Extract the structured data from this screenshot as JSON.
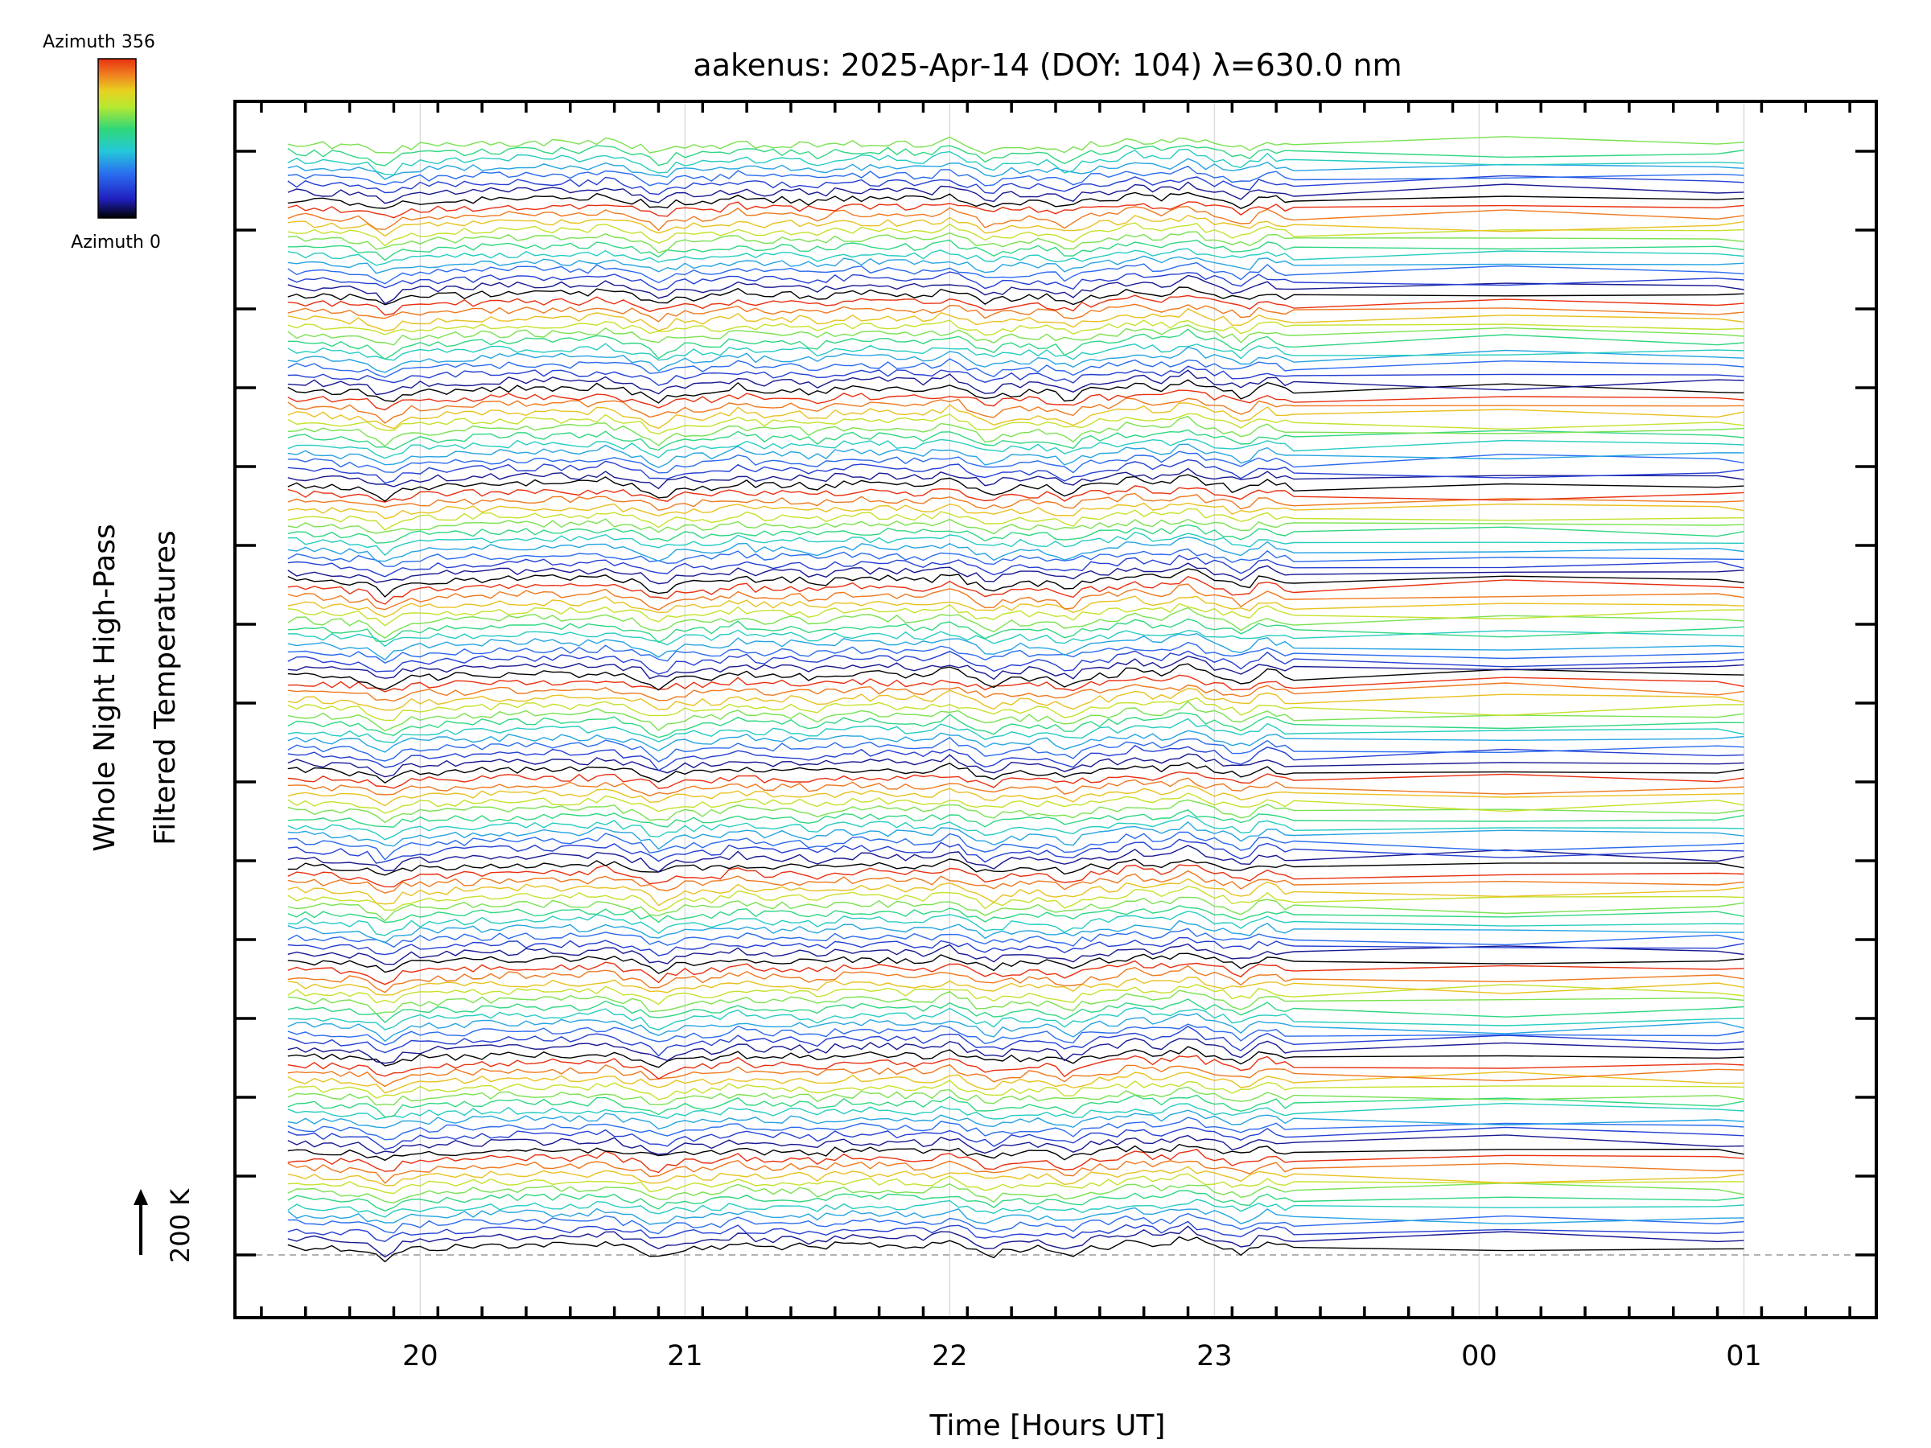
{
  "chart_data": {
    "type": "line",
    "title": "aakenus: 2025-Apr-14 (DOY: 104) λ=630.0 nm",
    "xlabel": "Time [Hours UT]",
    "ylabel_line1": "Whole Night High-Pass",
    "ylabel_line2": "Filtered Temperatures",
    "x_tick_labels": [
      "20",
      "21",
      "22",
      "23",
      "00",
      "01"
    ],
    "x_tick_hours": [
      20,
      21,
      22,
      23,
      24,
      25
    ],
    "xlim": [
      19.3,
      25.5
    ],
    "x_range_data": [
      19.5,
      25.0
    ],
    "grid": "vertical at labeled hours",
    "colorbar": {
      "top_label": "Azimuth 356",
      "bottom_label": "Azimuth 0",
      "colormap": "rainbow",
      "colors": [
        "#000000",
        "#2020c0",
        "#2a6ff0",
        "#23c8d8",
        "#30d878",
        "#b8e830",
        "#e8d020",
        "#f08020",
        "#e83010"
      ]
    },
    "scale_label": "200 K",
    "offset_between_traces_K": 10,
    "num_traces": 140,
    "azimuth_cycle_length": 12,
    "dense_sampling_end_hour": 23.3,
    "sparse_sample_hours": [
      23.3,
      24.1,
      24.9,
      25.0
    ]
  }
}
